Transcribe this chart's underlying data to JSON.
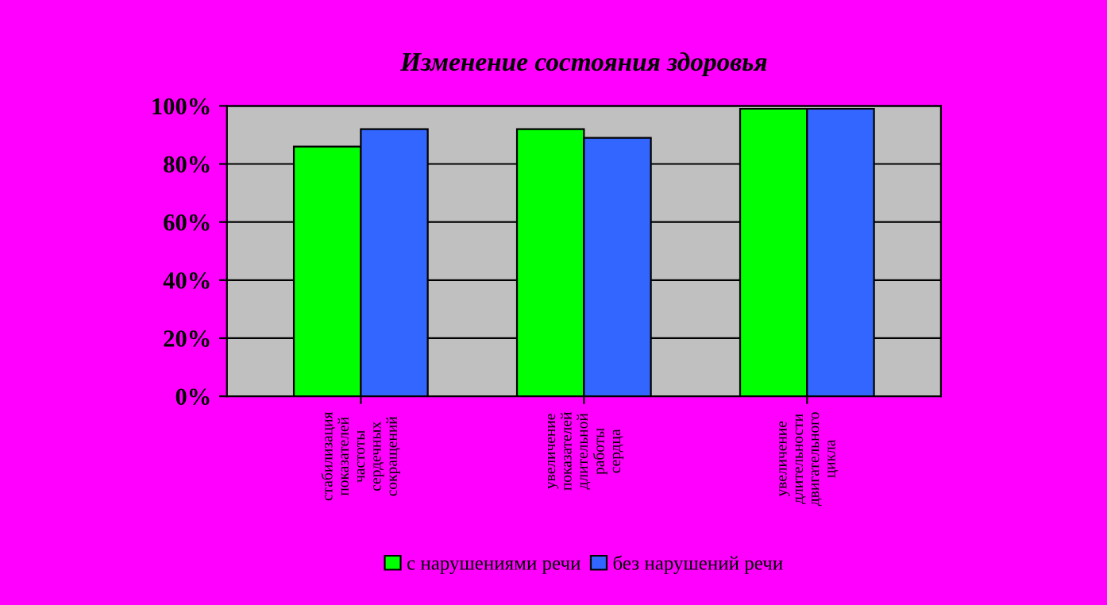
{
  "chart_data": {
    "type": "bar",
    "title": "Изменение состояния здоровья",
    "categories": [
      "стабилизация\nпоказателей\nчастоты\nсердечных\nсокращений",
      "увеличение\nпоказателей\nдлительной\nработы\nсердца",
      "увеличение\nдлительности\nдвигательного\nцикла"
    ],
    "series": [
      {
        "name": "с нарушениями речи",
        "color": "#00ff00",
        "values": [
          86,
          92,
          99
        ]
      },
      {
        "name": "без нарушений речи",
        "color": "#3366ff",
        "values": [
          92,
          89,
          99
        ]
      }
    ],
    "ylim": [
      0,
      100
    ],
    "yticks": [
      {
        "value": 0,
        "label": "0%"
      },
      {
        "value": 20,
        "label": "20%"
      },
      {
        "value": 40,
        "label": "40%"
      },
      {
        "value": 60,
        "label": "60%"
      },
      {
        "value": 80,
        "label": "80%"
      },
      {
        "value": 100,
        "label": "100%"
      }
    ],
    "grid": "y",
    "legend": "bottom"
  }
}
